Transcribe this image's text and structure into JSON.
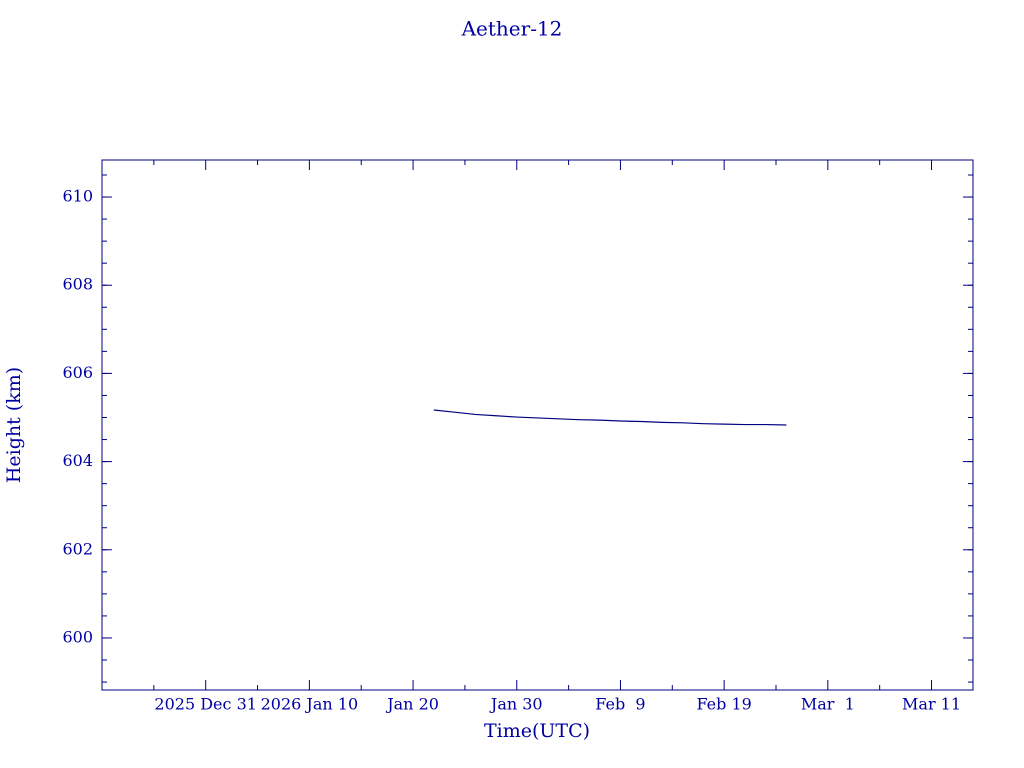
{
  "chart_data": {
    "type": "line",
    "title": "Aether-12",
    "x_label": "Time(UTC)",
    "y_label": "Height (km)",
    "color": "#000080",
    "x": [
      "2026-01-22",
      "2026-01-24",
      "2026-01-26",
      "2026-01-28",
      "2026-01-30",
      "2026-02-01",
      "2026-02-03",
      "2026-02-05",
      "2026-02-07",
      "2026-02-09",
      "2026-02-11",
      "2026-02-13",
      "2026-02-15",
      "2026-02-17",
      "2026-02-19",
      "2026-02-21",
      "2026-02-23",
      "2026-02-25"
    ],
    "series": [
      {
        "name": "Height",
        "color": "#000080",
        "values": [
          605.17,
          605.12,
          605.07,
          605.04,
          605.01,
          604.99,
          604.97,
          604.95,
          604.94,
          604.92,
          604.91,
          604.89,
          604.88,
          604.86,
          604.85,
          604.84,
          604.84,
          604.83
        ]
      }
    ],
    "xlim": [
      "2025-12-21",
      "2026-03-15"
    ],
    "xticks": [
      {
        "value": "2025-12-31",
        "label": "2025 Dec 31"
      },
      {
        "value": "2026-01-10",
        "label": "2026 Jan 10"
      },
      {
        "value": "2026-01-20",
        "label": "Jan 20"
      },
      {
        "value": "2026-01-30",
        "label": "Jan 30"
      },
      {
        "value": "2026-02-09",
        "label": "Feb  9"
      },
      {
        "value": "2026-02-19",
        "label": "Feb 19"
      },
      {
        "value": "2026-03-01",
        "label": "Mar  1"
      },
      {
        "value": "2026-03-11",
        "label": "Mar 11"
      }
    ],
    "xminorticks": [
      "2025-12-26",
      "2026-01-05",
      "2026-01-15",
      "2026-01-25",
      "2026-02-04",
      "2026-02-14",
      "2026-02-24",
      "2026-03-06"
    ],
    "ylim": [
      598.82,
      610.84
    ],
    "yticks": [
      600,
      602,
      604,
      606,
      608,
      610
    ],
    "yminor_step": 0.5
  }
}
